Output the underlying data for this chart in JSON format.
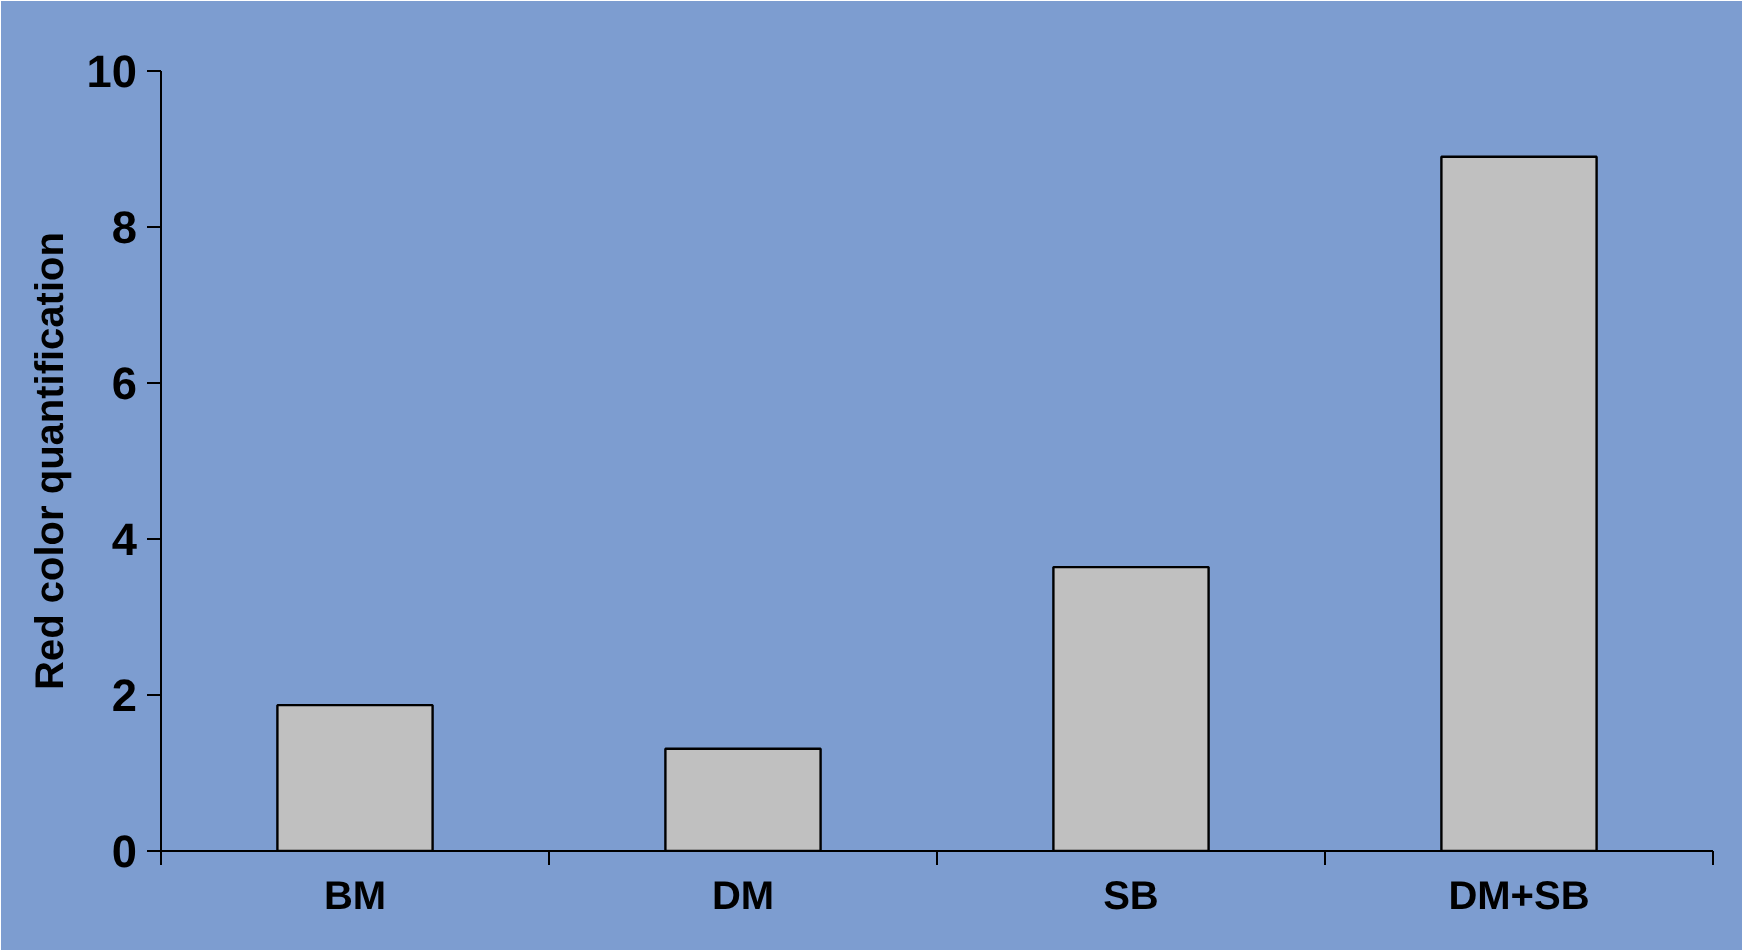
{
  "chart_data": {
    "type": "bar",
    "ylabel": "Red color quantification",
    "categories": [
      "BM",
      "DM",
      "SB",
      "DM+SB"
    ],
    "values": [
      1.87,
      1.31,
      3.64,
      8.9
    ],
    "color": "#c0c0c0",
    "ylim": [
      0,
      10
    ],
    "yticks": [
      0,
      2,
      4,
      6,
      8,
      10
    ],
    "grid": false
  }
}
